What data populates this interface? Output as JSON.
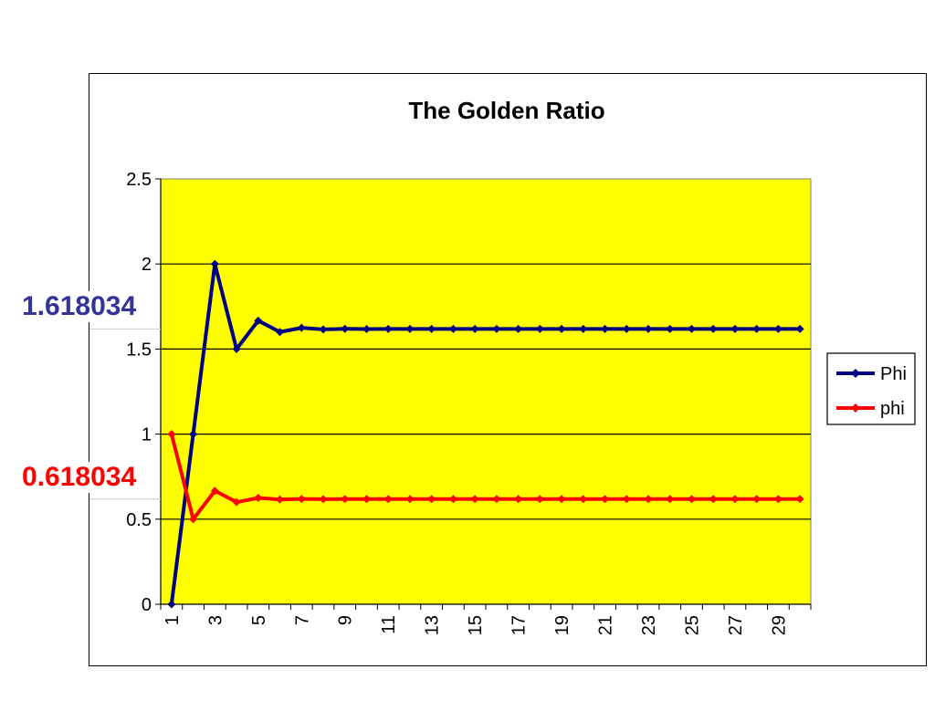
{
  "chart_data": {
    "type": "line",
    "title": "The Golden Ratio",
    "xlabel": "",
    "ylabel": "",
    "x": [
      1,
      2,
      3,
      4,
      5,
      6,
      7,
      8,
      9,
      10,
      11,
      12,
      13,
      14,
      15,
      16,
      17,
      18,
      19,
      20,
      21,
      22,
      23,
      24,
      25,
      26,
      27,
      28,
      29,
      30
    ],
    "x_tick_labels": [
      "1",
      "3",
      "5",
      "7",
      "9",
      "11",
      "13",
      "15",
      "17",
      "19",
      "21",
      "23",
      "25",
      "27",
      "29"
    ],
    "y_tick_labels": [
      "0",
      "0.5",
      "1",
      "1.5",
      "2",
      "2.5"
    ],
    "ylim": [
      0,
      2.5
    ],
    "grid": true,
    "plot_background": "#ffff00",
    "legend_position": "right",
    "series": [
      {
        "name": "Phi",
        "color": "#000080",
        "marker": "diamond",
        "values": [
          0,
          1,
          2,
          1.5,
          1.666667,
          1.6,
          1.625,
          1.615385,
          1.619048,
          1.617647,
          1.618182,
          1.617978,
          1.618056,
          1.618026,
          1.618037,
          1.618033,
          1.618034,
          1.618034,
          1.618034,
          1.618034,
          1.618034,
          1.618034,
          1.618034,
          1.618034,
          1.618034,
          1.618034,
          1.618034,
          1.618034,
          1.618034,
          1.618034
        ]
      },
      {
        "name": "phi",
        "color": "#ff0000",
        "marker": "diamond",
        "values": [
          1,
          0.5,
          0.666667,
          0.6,
          0.625,
          0.615385,
          0.619048,
          0.617647,
          0.618182,
          0.617978,
          0.618056,
          0.618026,
          0.618037,
          0.618033,
          0.618034,
          0.618034,
          0.618034,
          0.618034,
          0.618034,
          0.618034,
          0.618034,
          0.618034,
          0.618034,
          0.618034,
          0.618034,
          0.618034,
          0.618034,
          0.618034,
          0.618034,
          0.618034
        ]
      }
    ],
    "annotations": [
      {
        "text": "1.618034",
        "y": 1.618034,
        "color": "#333399"
      },
      {
        "text": "0.618034",
        "y": 0.618034,
        "color": "#ff0000"
      }
    ]
  }
}
